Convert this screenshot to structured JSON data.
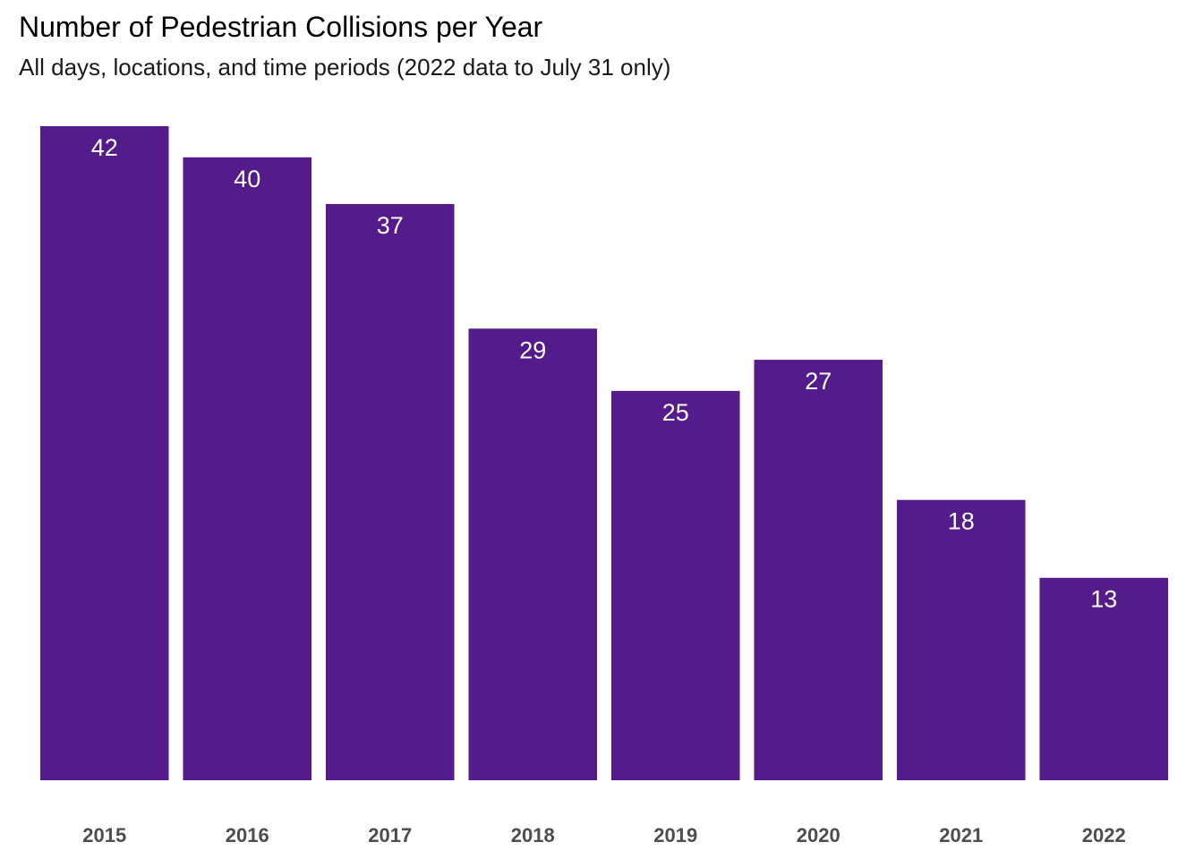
{
  "chart_data": {
    "type": "bar",
    "title": "Number of Pedestrian Collisions per Year",
    "subtitle": "All days, locations, and time periods (2022 data to July 31 only)",
    "xlabel": "",
    "ylabel": "",
    "categories": [
      "2015",
      "2016",
      "2017",
      "2018",
      "2019",
      "2020",
      "2021",
      "2022"
    ],
    "values": [
      42,
      40,
      37,
      29,
      25,
      27,
      18,
      13
    ],
    "ylim": [
      0,
      42
    ],
    "grid": false,
    "legend": "none",
    "data_labels": "inside-top",
    "colors": {
      "bar": "#541b8a",
      "label": "#ffffff",
      "tick": "#4d4d4d"
    }
  }
}
